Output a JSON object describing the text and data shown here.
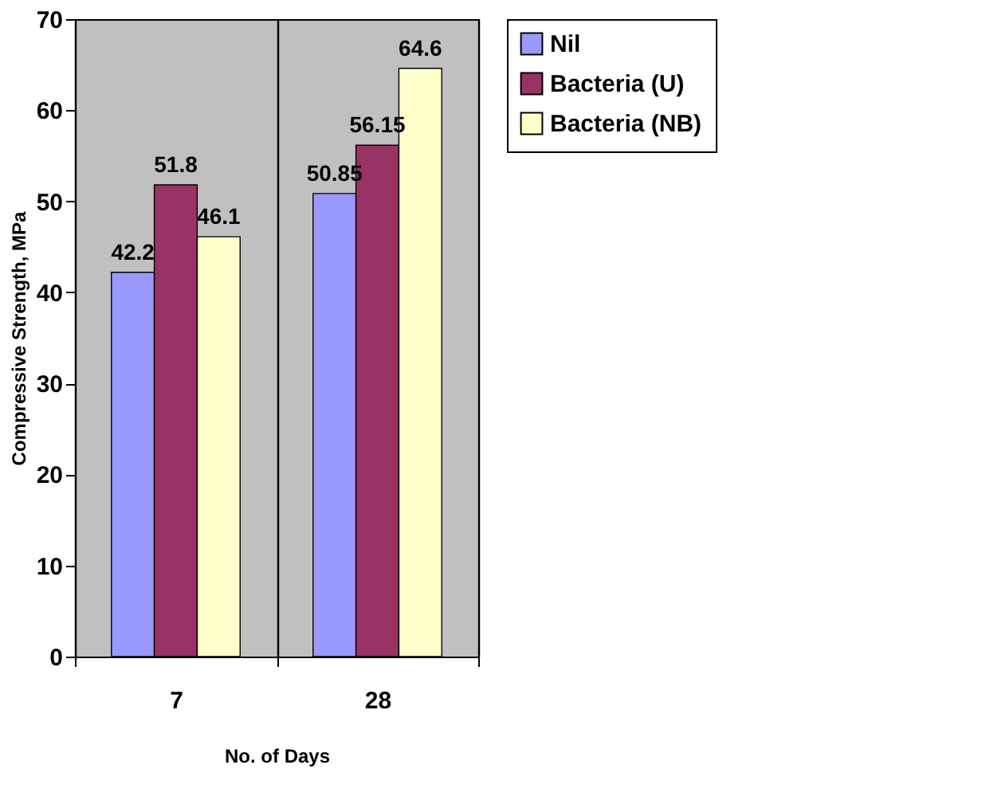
{
  "chart_data": {
    "type": "bar",
    "xlabel": "No. of Days",
    "ylabel": "Compressive Strength, MPa",
    "categories": [
      "7",
      "28"
    ],
    "series": [
      {
        "name": "Nil",
        "color": "#9999ff",
        "values": [
          42.2,
          50.85
        ]
      },
      {
        "name": "Bacteria (U)",
        "color": "#993366",
        "values": [
          51.8,
          56.15
        ]
      },
      {
        "name": "Bacteria (NB)",
        "color": "#ffffcc",
        "values": [
          46.1,
          64.6
        ]
      }
    ],
    "ylim": [
      0,
      70
    ],
    "yticks": [
      0,
      10,
      20,
      30,
      40,
      50,
      60,
      70
    ],
    "grid": "x",
    "legend": "right",
    "data_labels": true
  }
}
